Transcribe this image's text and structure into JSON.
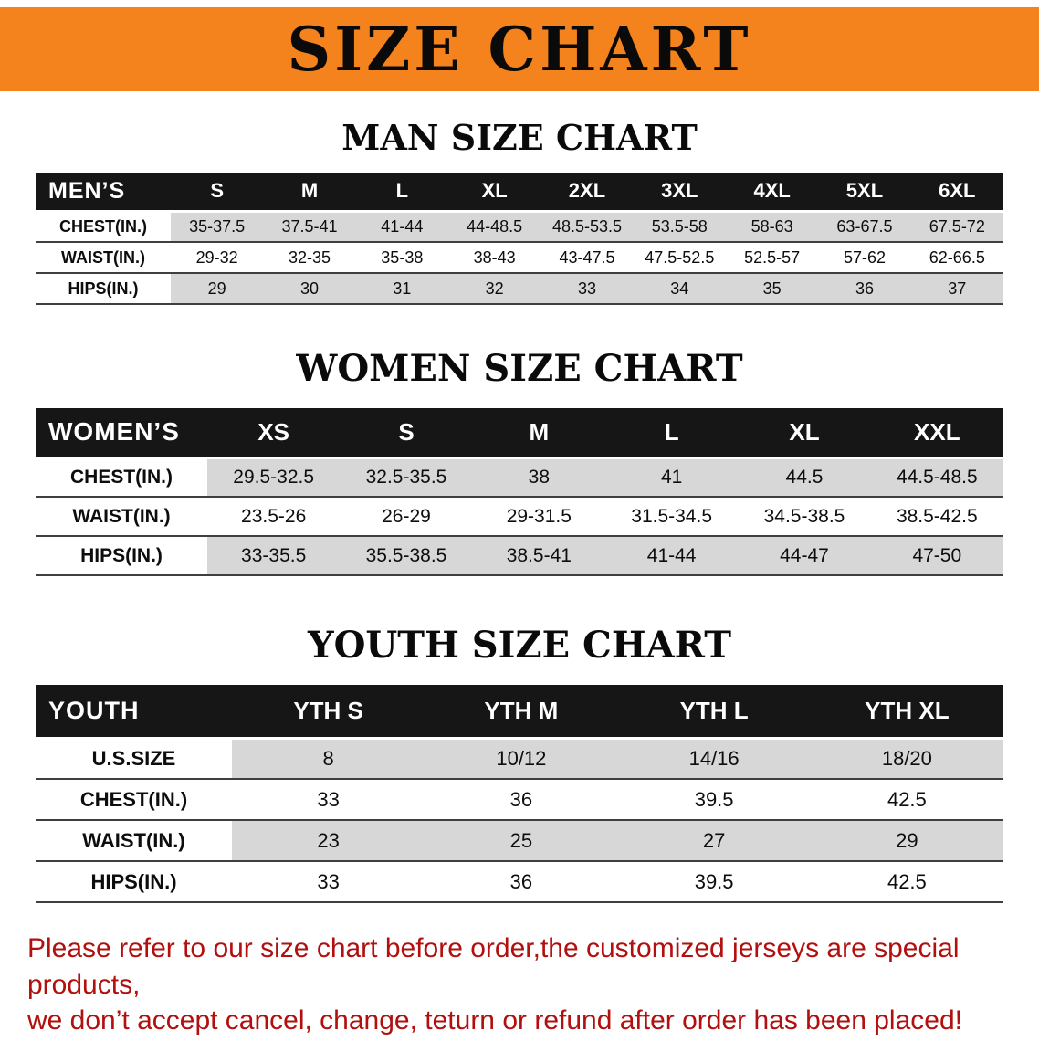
{
  "banner": {
    "title": "SIZE CHART"
  },
  "sections": [
    {
      "heading": "MAN SIZE CHART",
      "table": {
        "label": "MEN’S",
        "columns": [
          "S",
          "M",
          "L",
          "XL",
          "2XL",
          "3XL",
          "4XL",
          "5XL",
          "6XL"
        ],
        "rows": [
          {
            "label": "CHEST(IN.)",
            "values": [
              "35-37.5",
              "37.5-41",
              "41-44",
              "44-48.5",
              "48.5-53.5",
              "53.5-58",
              "58-63",
              "63-67.5",
              "67.5-72"
            ]
          },
          {
            "label": "WAIST(IN.)",
            "values": [
              "29-32",
              "32-35",
              "35-38",
              "38-43",
              "43-47.5",
              "47.5-52.5",
              "52.5-57",
              "57-62",
              "62-66.5"
            ]
          },
          {
            "label": "HIPS(IN.)",
            "values": [
              "29",
              "30",
              "31",
              "32",
              "33",
              "34",
              "35",
              "36",
              "37"
            ]
          }
        ]
      }
    },
    {
      "heading": "WOMEN SIZE CHART",
      "table": {
        "label": "WOMEN’S",
        "columns": [
          "XS",
          "S",
          "M",
          "L",
          "XL",
          "XXL"
        ],
        "rows": [
          {
            "label": "CHEST(IN.)",
            "values": [
              "29.5-32.5",
              "32.5-35.5",
              "38",
              "41",
              "44.5",
              "44.5-48.5"
            ]
          },
          {
            "label": "WAIST(IN.)",
            "values": [
              "23.5-26",
              "26-29",
              "29-31.5",
              "31.5-34.5",
              "34.5-38.5",
              "38.5-42.5"
            ]
          },
          {
            "label": "HIPS(IN.)",
            "values": [
              "33-35.5",
              "35.5-38.5",
              "38.5-41",
              "41-44",
              "44-47",
              "47-50"
            ]
          }
        ]
      }
    },
    {
      "heading": "YOUTH SIZE CHART",
      "table": {
        "label": "YOUTH",
        "columns": [
          "YTH S",
          "YTH M",
          "YTH L",
          "YTH XL"
        ],
        "rows": [
          {
            "label": "U.S.SIZE",
            "values": [
              "8",
              "10/12",
              "14/16",
              "18/20"
            ]
          },
          {
            "label": "CHEST(IN.)",
            "values": [
              "33",
              "36",
              "39.5",
              "42.5"
            ]
          },
          {
            "label": "WAIST(IN.)",
            "values": [
              "23",
              "25",
              "27",
              "29"
            ]
          },
          {
            "label": "HIPS(IN.)",
            "values": [
              "33",
              "36",
              "39.5",
              "42.5"
            ]
          }
        ]
      }
    }
  ],
  "footer": {
    "line1": "Please refer to our size chart before order,the customized jerseys are special products,",
    "line2": "we don’t accept cancel, change, teturn or refund after order has been placed!"
  },
  "colors": {
    "banner_bg": "#F5831D",
    "header_bg": "#161616",
    "row_shade": "#d7d7d7",
    "note_text": "#b20f0f"
  }
}
